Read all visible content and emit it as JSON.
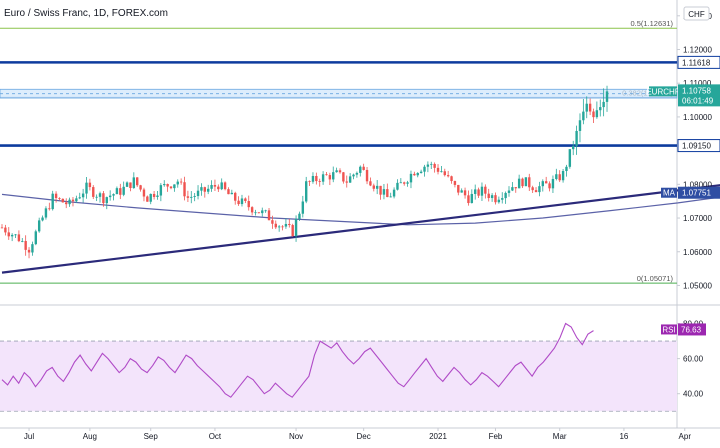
{
  "header": {
    "title": "Euro / Swiss Franc, 1D, FOREX.com",
    "currency": "CHF"
  },
  "colors": {
    "bull": "#26a69a",
    "bear": "#ef5350",
    "level": "#0d3b9e",
    "trend": "#2b2a7a",
    "ma": "#5b62a8",
    "zone": "#cfe6fb",
    "fib_bottom": "#4caf50",
    "fib_top": "#8bc34a",
    "rsi_line": "#b04bc7",
    "rsi_band": "#f3e4fb",
    "eurchf_tag": "#26a69a",
    "ma_tag": "#2f4ea3",
    "rsi_tag": "#9c27b0"
  },
  "chart_data": [
    {
      "type": "candlestick",
      "name": "EURCHF",
      "x_labels": [
        "Jul",
        "Aug",
        "Sep",
        "Oct",
        "Nov",
        "Dec",
        "2021",
        "Feb",
        "Mar",
        "16",
        "Apr"
      ],
      "ylim": [
        1.0445,
        1.1335
      ],
      "y_ticks": [
        "1.13000",
        "1.12000",
        "1.11000",
        "1.10000",
        "1.08000",
        "1.07000",
        "1.06000",
        "1.05000"
      ],
      "price_path": [
        [
          0,
          1.0672
        ],
        [
          5,
          1.064
        ],
        [
          8,
          1.061
        ],
        [
          12,
          1.07
        ],
        [
          15,
          1.076
        ],
        [
          20,
          1.074
        ],
        [
          25,
          1.079
        ],
        [
          30,
          1.076
        ],
        [
          35,
          1.078
        ],
        [
          39,
          1.081
        ],
        [
          43,
          1.076
        ],
        [
          47,
          1.079
        ],
        [
          52,
          1.081
        ],
        [
          55,
          1.076
        ],
        [
          60,
          1.078
        ],
        [
          64,
          1.08
        ],
        [
          68,
          1.076
        ],
        [
          72,
          1.074
        ],
        [
          78,
          1.071
        ],
        [
          82,
          1.068
        ],
        [
          86,
          1.066
        ],
        [
          88,
          1.072
        ],
        [
          90,
          1.08
        ],
        [
          94,
          1.082
        ],
        [
          99,
          1.083
        ],
        [
          102,
          1.081
        ],
        [
          106,
          1.085
        ],
        [
          110,
          1.08
        ],
        [
          114,
          1.076
        ],
        [
          118,
          1.08
        ],
        [
          122,
          1.084
        ],
        [
          126,
          1.086
        ],
        [
          130,
          1.084
        ],
        [
          134,
          1.079
        ],
        [
          138,
          1.076
        ],
        [
          142,
          1.078
        ],
        [
          146,
          1.076
        ],
        [
          150,
          1.079
        ],
        [
          154,
          1.081
        ],
        [
          158,
          1.079
        ],
        [
          162,
          1.08
        ],
        [
          166,
          1.083
        ],
        [
          169,
          1.092
        ],
        [
          171,
          1.098
        ],
        [
          173,
          1.103
        ],
        [
          175,
          1.101
        ],
        [
          177,
          1.104
        ],
        [
          179,
          1.1076
        ]
      ],
      "levels": [
        {
          "label": "1.11618",
          "value": 1.11618
        },
        {
          "label": "1.09150",
          "value": 1.0915
        }
      ],
      "fib": [
        {
          "label": "0.5(1.12631)",
          "value": 1.12631
        },
        {
          "label": "0.382(1.10580)",
          "value": 1.1058
        },
        {
          "label": "0(1.05071)",
          "value": 1.05071
        }
      ],
      "zone": [
        1.1056,
        1.1082
      ],
      "trendline": [
        [
          0,
          1.0538
        ],
        [
          222,
          1.0809
        ]
      ],
      "ma_points": [
        [
          0,
          1.077
        ],
        [
          20,
          1.0748
        ],
        [
          40,
          1.073
        ],
        [
          60,
          1.0715
        ],
        [
          80,
          1.07
        ],
        [
          100,
          1.069
        ],
        [
          120,
          1.068
        ],
        [
          140,
          1.0685
        ],
        [
          160,
          1.07
        ],
        [
          180,
          1.0722
        ],
        [
          200,
          1.0745
        ],
        [
          222,
          1.07751
        ]
      ],
      "current": {
        "label": "EURCHF",
        "price": "1.10758",
        "countdown": "06:01:49",
        "value": 1.10758
      },
      "ma_value": {
        "label": "MA",
        "value": "1.07751",
        "num": 1.07751
      }
    },
    {
      "type": "line",
      "name": "RSI",
      "ylim": [
        25,
        90
      ],
      "y_ticks": [
        "80.00",
        "60.00",
        "40.00"
      ],
      "band": [
        30,
        70
      ],
      "values": [
        48,
        45,
        50,
        46,
        52,
        49,
        44,
        48,
        53,
        55,
        50,
        47,
        52,
        58,
        62,
        57,
        53,
        58,
        63,
        60,
        56,
        52,
        55,
        60,
        58,
        54,
        52,
        56,
        61,
        59,
        55,
        52,
        57,
        62,
        60,
        56,
        53,
        50,
        47,
        44,
        40,
        38,
        42,
        46,
        50,
        48,
        44,
        40,
        42,
        46,
        43,
        40,
        38,
        42,
        46,
        50,
        62,
        70,
        68,
        66,
        69,
        64,
        60,
        57,
        60,
        64,
        66,
        62,
        58,
        54,
        50,
        46,
        44,
        48,
        52,
        56,
        60,
        55,
        50,
        47,
        51,
        55,
        52,
        48,
        45,
        48,
        52,
        50,
        47,
        44,
        48,
        52,
        56,
        58,
        54,
        50,
        55,
        58,
        62,
        66,
        72,
        80,
        78,
        72,
        68,
        74,
        76
      ],
      "current": {
        "label": "RSI",
        "value": "76.63",
        "num": 76.63
      }
    }
  ]
}
